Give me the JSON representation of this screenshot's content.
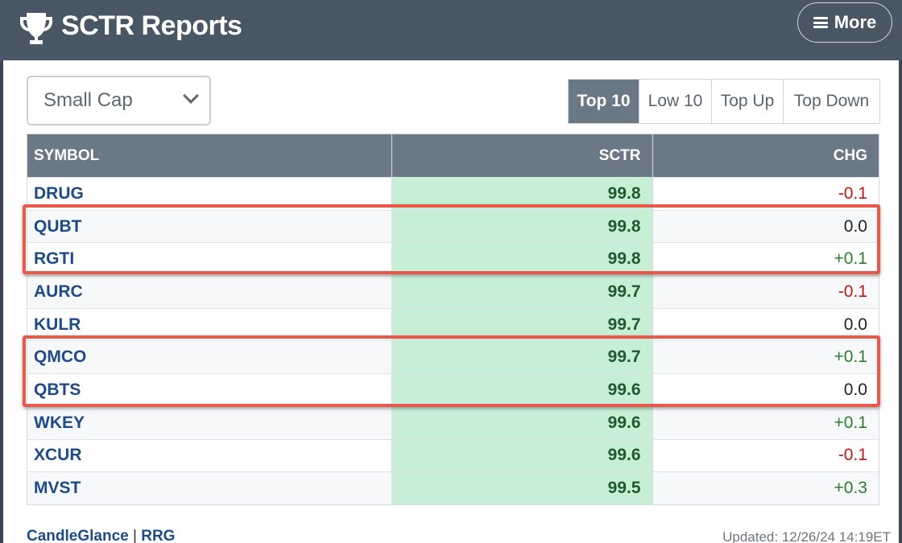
{
  "header": {
    "title": "SCTR Reports",
    "more_label": "More",
    "bg_color": "#495663"
  },
  "filter": {
    "selected": "Small Cap"
  },
  "tabs": [
    {
      "label": "Top 10",
      "active": true
    },
    {
      "label": "Low 10",
      "active": false
    },
    {
      "label": "Top Up",
      "active": false
    },
    {
      "label": "Top Down",
      "active": false
    }
  ],
  "table": {
    "columns": [
      "SYMBOL",
      "SCTR",
      "CHG"
    ],
    "rows": [
      {
        "symbol": "DRUG",
        "sctr": "99.8",
        "chg": "-0.1"
      },
      {
        "symbol": "QUBT",
        "sctr": "99.8",
        "chg": "0.0"
      },
      {
        "symbol": "RGTI",
        "sctr": "99.8",
        "chg": "+0.1"
      },
      {
        "symbol": "AURC",
        "sctr": "99.7",
        "chg": "-0.1"
      },
      {
        "symbol": "KULR",
        "sctr": "99.7",
        "chg": "0.0"
      },
      {
        "symbol": "QMCO",
        "sctr": "99.7",
        "chg": "+0.1"
      },
      {
        "symbol": "QBTS",
        "sctr": "99.6",
        "chg": "0.0"
      },
      {
        "symbol": "WKEY",
        "sctr": "99.6",
        "chg": "+0.1"
      },
      {
        "symbol": "XCUR",
        "sctr": "99.6",
        "chg": "-0.1"
      },
      {
        "symbol": "MVST",
        "sctr": "99.5",
        "chg": "+0.3"
      }
    ]
  },
  "footer": {
    "links": [
      "CandleGlance",
      "RRG"
    ],
    "separator": "|",
    "updated": "Updated: 12/26/24 14:19ET"
  },
  "colors": {
    "highlight": "#e8594c",
    "sctr_cell": "#c6efd6",
    "negative": "#c01515",
    "positive": "#2a7d2a"
  }
}
